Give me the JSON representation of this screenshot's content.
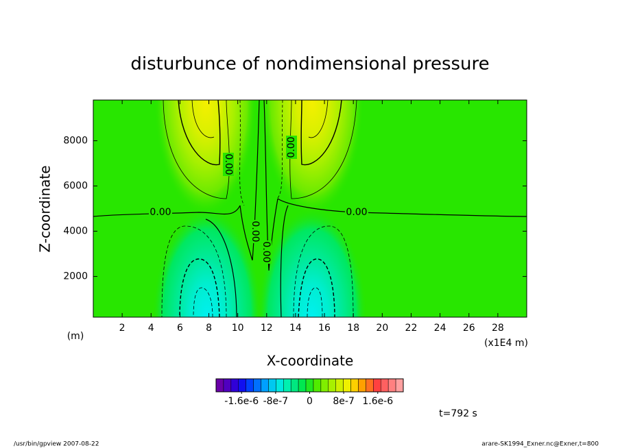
{
  "chart_data": {
    "type": "contour",
    "title": "disturbunce of nondimensional pressure",
    "x_label": "X-coordinate",
    "y_label": "Z-coordinate",
    "x_unit_left": "(m)",
    "x_unit_right": "(x1E4 m)",
    "xlim": [
      0,
      30
    ],
    "xticks": [
      2,
      4,
      6,
      8,
      10,
      12,
      14,
      16,
      18,
      20,
      22,
      24,
      26,
      28
    ],
    "ylim": [
      200,
      9800
    ],
    "yticks": [
      2000,
      4000,
      6000,
      8000
    ],
    "contour_labels": [
      "0.00",
      "0.00",
      "0.00",
      "0.00",
      "0.00",
      "0.00"
    ],
    "colorbar": {
      "lim": [
        -2.2e-06,
        2.2e-06
      ],
      "ticks": [
        {
          "value": -1.6e-06,
          "label": "-1.6e-6"
        },
        {
          "value": -8e-07,
          "label": "-8e-7"
        },
        0,
        {
          "value": 8e-07,
          "label": "8e-7"
        },
        {
          "value": 1.6e-06,
          "label": "1.6e-6"
        }
      ],
      "colors": [
        "#6a00a8",
        "#5000c0",
        "#3000d8",
        "#1010f0",
        "#0040ff",
        "#0070ff",
        "#00a0ff",
        "#00c8f0",
        "#00e8e0",
        "#00f0b0",
        "#00e880",
        "#00e850",
        "#20e820",
        "#50ec00",
        "#80ee00",
        "#a8f000",
        "#d0f000",
        "#f0f000",
        "#ffd000",
        "#ffa000",
        "#ff7020",
        "#ff4040",
        "#ff6060",
        "#ff8080",
        "#ffa0a0"
      ]
    },
    "time_label": "t=792 s",
    "footer_left": "/usr/bin/gpview   2007-08-22",
    "footer_right": "arare-SK1994_Exner.nc@Exner,t=800"
  }
}
